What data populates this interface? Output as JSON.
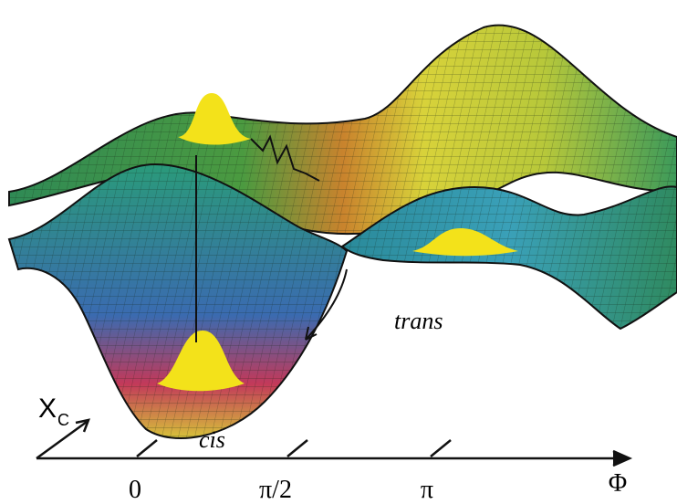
{
  "labels": {
    "trans": "trans",
    "cis": "cis",
    "x_axis": "Φ",
    "y_axis": "X",
    "y_axis_sub": "C",
    "ticks": [
      "0",
      "π/2",
      "π"
    ]
  }
}
